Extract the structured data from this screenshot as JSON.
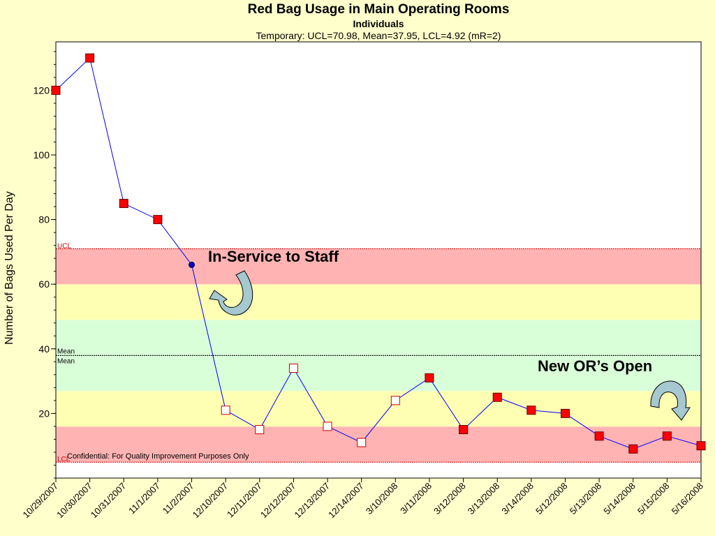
{
  "title": "Red Bag Usage in Main Operating Rooms",
  "subtitle": "Individuals",
  "limits_text": "Temporary: UCL=70.98, Mean=37.95, LCL=4.92 (mR=2)",
  "annotations": {
    "in_service": "In-Service to Staff",
    "new_or": "New OR’s Open",
    "confidential": "Confidential: For Quality Improvement Purposes Only"
  },
  "chart_data": {
    "type": "line",
    "ylabel": "Number of Bags Used Per Day",
    "ylim": [
      0,
      135
    ],
    "y_ticks": [
      20,
      40,
      60,
      80,
      100,
      120
    ],
    "categories": [
      "10/29/2007",
      "10/30/2007",
      "10/31/2007",
      "11/1/2007",
      "11/2/2007",
      "12/10/2007",
      "12/11/2007",
      "12/12/2007",
      "12/13/2007",
      "12/14/2007",
      "3/10/2008",
      "3/11/2008",
      "3/12/2008",
      "3/13/2008",
      "3/14/2008",
      "5/12/2008",
      "5/13/2008",
      "5/14/2008",
      "5/15/2008",
      "5/16/2008"
    ],
    "values": [
      120,
      130,
      85,
      80,
      66,
      21,
      15,
      34,
      16,
      11,
      24,
      31,
      15,
      25,
      21,
      20,
      13,
      9,
      13,
      10
    ],
    "marker": [
      "red",
      "red",
      "red",
      "red",
      "dot",
      "open",
      "open",
      "open",
      "open",
      "open",
      "open",
      "red",
      "red",
      "red",
      "red",
      "red",
      "red",
      "red",
      "red",
      "red"
    ],
    "control_limits": {
      "ucl": 70.98,
      "mean": 37.95,
      "lcl": 4.92
    },
    "limit_labels": {
      "ucl": "UCL",
      "mean": "Mean",
      "lcl": "LCL"
    },
    "zones": [
      {
        "from": 4.92,
        "to": 15.93,
        "color": "#ffb3b3"
      },
      {
        "from": 15.93,
        "to": 26.94,
        "color": "#ffffb3"
      },
      {
        "from": 26.94,
        "to": 48.96,
        "color": "#d9ffd9"
      },
      {
        "from": 48.96,
        "to": 59.97,
        "color": "#ffffb3"
      },
      {
        "from": 59.97,
        "to": 70.98,
        "color": "#ffb3b3"
      }
    ],
    "colors": {
      "line": "#0000ff",
      "marker_fill": "#ff0000",
      "limit_line": "#cc0000",
      "mean_line": "#000000"
    }
  }
}
